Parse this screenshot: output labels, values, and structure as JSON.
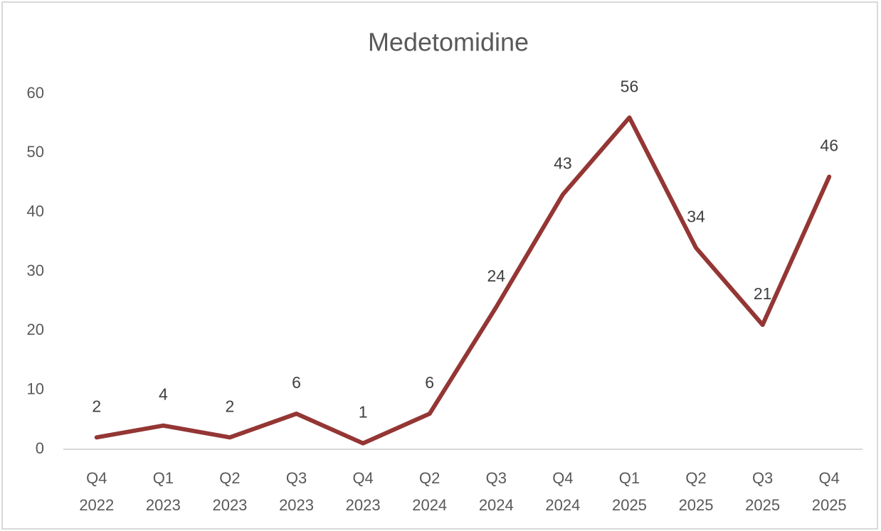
{
  "chart_data": {
    "type": "line",
    "title": "Medetomidine",
    "categories": [
      "Q4 2022",
      "Q1 2023",
      "Q2 2023",
      "Q3 2023",
      "Q4 2023",
      "Q2 2024",
      "Q3 2024",
      "Q4 2024",
      "Q1 2025",
      "Q2 2025",
      "Q3 2025",
      "Q4 2025"
    ],
    "series": [
      {
        "name": "Medetomidine",
        "color": "#943634",
        "values": [
          2,
          4,
          2,
          6,
          1,
          6,
          24,
          43,
          56,
          34,
          21,
          46
        ]
      }
    ],
    "ylim": [
      0,
      60
    ],
    "yticks": [
      0,
      10,
      20,
      30,
      40,
      50,
      60
    ],
    "grid": false,
    "data_labels": true
  }
}
